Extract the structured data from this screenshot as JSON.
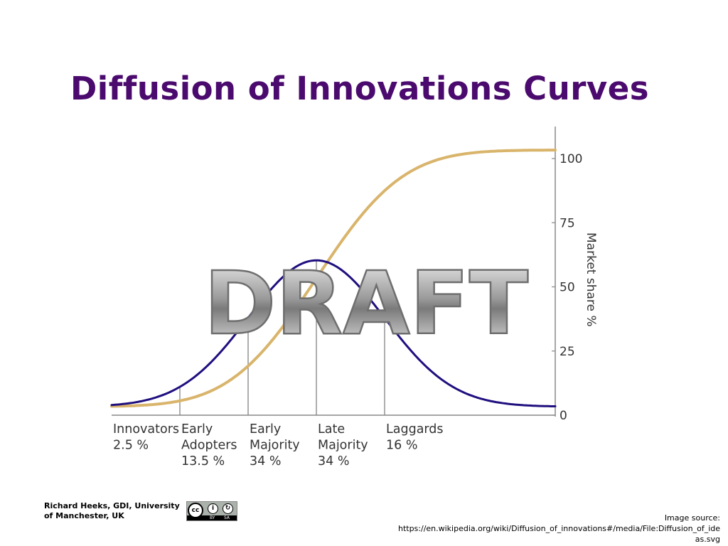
{
  "title": "Diffusion of Innovations Curves",
  "watermark": "DRAFT",
  "footer": {
    "author_line1": "Richard Heeks, GDI, University",
    "author_line2": "of Manchester, UK",
    "license_badge": "cc-by-sa-icon",
    "license_by": "BY",
    "license_sa": "SA",
    "source_line1": "Image source:",
    "source_line2": "https://en.wikipedia.org/wiki/Diffusion_of_innovations#/media/File:Diffusion_of_ide",
    "source_line3": "as.svg"
  },
  "chart_data": {
    "type": "line",
    "y_axis_title": "Market share %",
    "ylim": [
      0,
      100
    ],
    "y_ticks": [
      0,
      25,
      50,
      75,
      100
    ],
    "y_axis_position": "right",
    "grid": false,
    "segments": [
      {
        "name": "Innovators",
        "share": "2.5 %",
        "lines": [
          "Innovators",
          "2.5 %"
        ]
      },
      {
        "name": "Early Adopters",
        "share": "13.5 %",
        "lines": [
          "Early",
          "Adopters",
          "13.5 %"
        ]
      },
      {
        "name": "Early Majority",
        "share": "34 %",
        "lines": [
          "Early",
          "Majority",
          "34 %"
        ]
      },
      {
        "name": "Late Majority",
        "share": "34 %",
        "lines": [
          "Late",
          "Majority",
          "34 %"
        ]
      },
      {
        "name": "Laggards",
        "share": "16 %",
        "lines": [
          "Laggards",
          "16 %"
        ]
      }
    ],
    "boundaries_sd": [
      -2,
      -1,
      0,
      1
    ],
    "series": [
      {
        "kind": "adoption-bell",
        "color": "#1f0f7f",
        "peak_market_share": 57,
        "range_sd": [
          -3,
          3.5
        ]
      },
      {
        "kind": "cumulative-market-share",
        "color": "#d9b46b",
        "range_sd": [
          -3,
          3.5
        ],
        "values_at_boundaries": [
          2.5,
          16,
          50,
          84
        ]
      }
    ]
  }
}
